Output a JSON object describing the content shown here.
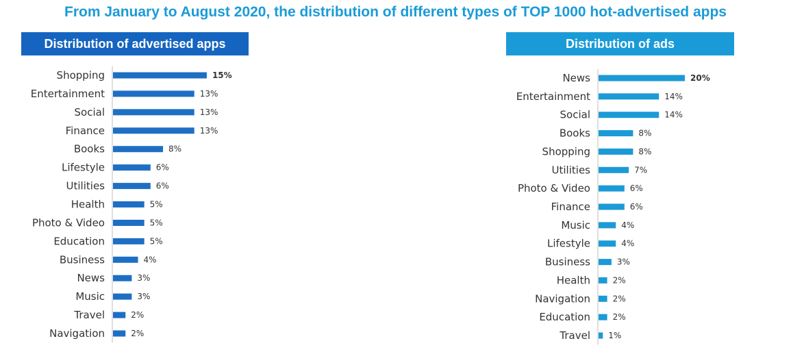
{
  "title": "From January to August 2020, the distribution of different types of TOP 1000 hot-advertised apps",
  "colors": {
    "title": "#1a9bd7",
    "left_header": "#1565c0",
    "left_bar": "#1e6fc4",
    "right_header": "#1a9bd7",
    "right_bar": "#1c9ad6",
    "axis": "#bfbfbf"
  },
  "chart_data": [
    {
      "type": "bar",
      "orientation": "horizontal",
      "title": "Distribution of advertised apps",
      "value_format": "percent",
      "categories": [
        "Shopping",
        "Entertainment",
        "Social",
        "Finance",
        "Books",
        "Lifestyle",
        "Utilities",
        "Health",
        "Photo & Video",
        "Education",
        "Business",
        "News",
        "Music",
        "Travel",
        "Navigation"
      ],
      "values": [
        15,
        13,
        13,
        13,
        8,
        6,
        6,
        5,
        5,
        5,
        4,
        3,
        3,
        2,
        2
      ],
      "value_labels": [
        "15%",
        "13%",
        "13%",
        "13%",
        "8%",
        "6%",
        "6%",
        "5%",
        "5%",
        "5%",
        "4%",
        "3%",
        "3%",
        "2%",
        "2%"
      ],
      "bold_labels": [
        0
      ]
    },
    {
      "type": "bar",
      "orientation": "horizontal",
      "title": "Distribution of ads",
      "value_format": "percent",
      "categories": [
        "News",
        "Entertainment",
        "Social",
        "Books",
        "Shopping",
        "Utilities",
        "Photo & Video",
        "Finance",
        "Music",
        "Lifestyle",
        "Business",
        "Health",
        "Navigation",
        "Education",
        "Travel"
      ],
      "values": [
        20,
        14,
        14,
        8,
        8,
        7,
        6,
        6,
        4,
        4,
        3,
        2,
        2,
        2,
        1
      ],
      "value_labels": [
        "20%",
        "14%",
        "14%",
        "8%",
        "8%",
        "7%",
        "6%",
        "6%",
        "4%",
        "4%",
        "3%",
        "2%",
        "2%",
        "2%",
        "1%"
      ],
      "bold_labels": [
        0
      ]
    }
  ]
}
